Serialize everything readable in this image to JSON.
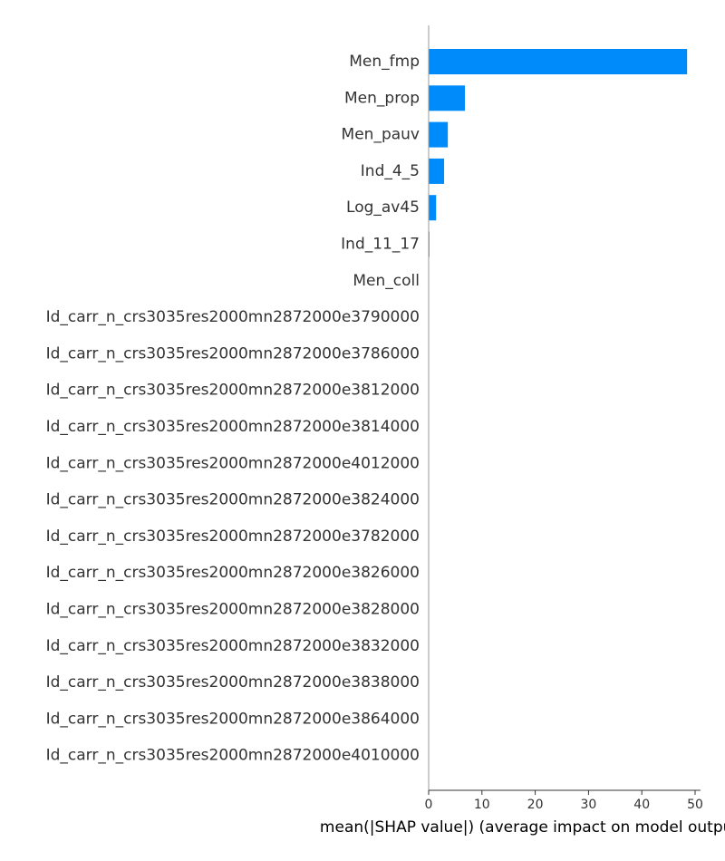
{
  "chart_data": {
    "type": "bar",
    "orientation": "horizontal",
    "categories": [
      "Men_fmp",
      "Men_prop",
      "Men_pauv",
      "Ind_4_5",
      "Log_av45",
      "Ind_11_17",
      "Men_coll",
      "Id_carr_n_crs3035res2000mn2872000e3790000",
      "Id_carr_n_crs3035res2000mn2872000e3786000",
      "Id_carr_n_crs3035res2000mn2872000e3812000",
      "Id_carr_n_crs3035res2000mn2872000e3814000",
      "Id_carr_n_crs3035res2000mn2872000e4012000",
      "Id_carr_n_crs3035res2000mn2872000e3824000",
      "Id_carr_n_crs3035res2000mn2872000e3782000",
      "Id_carr_n_crs3035res2000mn2872000e3826000",
      "Id_carr_n_crs3035res2000mn2872000e3828000",
      "Id_carr_n_crs3035res2000mn2872000e3832000",
      "Id_carr_n_crs3035res2000mn2872000e3838000",
      "Id_carr_n_crs3035res2000mn2872000e3864000",
      "Id_carr_n_crs3035res2000mn2872000e4010000"
    ],
    "values": [
      48.5,
      6.8,
      3.6,
      2.9,
      1.4,
      0.15,
      0.05,
      0,
      0,
      0,
      0,
      0,
      0,
      0,
      0,
      0,
      0,
      0,
      0,
      0
    ],
    "xlabel": "mean(|SHAP value|) (average impact on model output magnitude)",
    "xlim": [
      0,
      51
    ],
    "xticks": [
      0,
      10,
      20,
      30,
      40,
      50
    ],
    "grid": false,
    "legend": "none",
    "bar_color": "#008bfb",
    "axis_color": "#999999",
    "text_color": "#333333"
  }
}
